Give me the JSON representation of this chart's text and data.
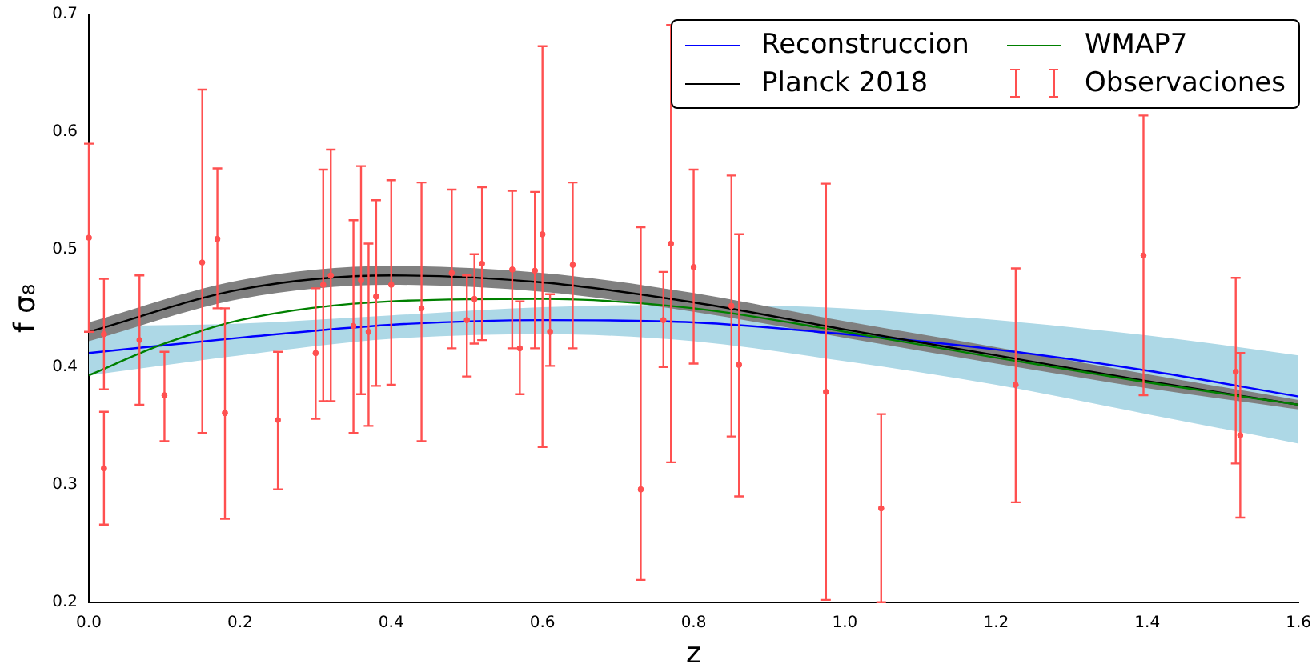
{
  "chart_data": {
    "type": "line",
    "xlabel": "z",
    "ylabel": "f σ₈",
    "xlim": [
      0,
      1.6
    ],
    "ylim": [
      0.2,
      0.7
    ],
    "xticks": [
      {
        "value": 0,
        "label": "0.0"
      },
      0.2,
      0.4,
      0.6,
      0.8,
      {
        "value": 1,
        "label": "1.0"
      },
      1.2,
      1.4,
      1.6
    ],
    "yticks": [
      0.2,
      0.3,
      0.4,
      0.5,
      0.6,
      0.7
    ],
    "grid": false,
    "legend": "top right",
    "line_style": "solid",
    "series": [
      {
        "name": "Reconstruccion",
        "type": "line",
        "color": "#0000ff",
        "x": [
          0,
          0.2,
          0.4,
          0.6,
          0.8,
          1.0,
          1.2,
          1.4,
          1.6
        ],
        "values": [
          0.412,
          0.425,
          0.436,
          0.44,
          0.438,
          0.428,
          0.415,
          0.397,
          0.375
        ],
        "lower": [
          0.393,
          0.41,
          0.424,
          0.428,
          0.422,
          0.405,
          0.385,
          0.36,
          0.335
        ],
        "upper": [
          0.435,
          0.437,
          0.444,
          0.451,
          0.453,
          0.45,
          0.44,
          0.427,
          0.41
        ]
      },
      {
        "name": "Planck 2018",
        "type": "line",
        "color": "#000000",
        "x": [
          0,
          0.2,
          0.4,
          0.6,
          0.8,
          1.0,
          1.2,
          1.4,
          1.6
        ],
        "values": [
          0.43,
          0.466,
          0.478,
          0.472,
          0.455,
          0.432,
          0.41,
          0.388,
          0.368
        ],
        "lower": [
          0.422,
          0.458,
          0.47,
          0.464,
          0.447,
          0.425,
          0.403,
          0.382,
          0.364
        ],
        "upper": [
          0.438,
          0.474,
          0.486,
          0.48,
          0.463,
          0.439,
          0.417,
          0.394,
          0.372
        ]
      },
      {
        "name": "WMAP7",
        "type": "line",
        "color": "#008000",
        "x": [
          0,
          0.1,
          0.2,
          0.4,
          0.6,
          0.8,
          1.0,
          1.2,
          1.4,
          1.6
        ],
        "values": [
          0.393,
          0.42,
          0.44,
          0.456,
          0.458,
          0.45,
          0.43,
          0.408,
          0.387,
          0.368
        ]
      },
      {
        "name": "Observaciones",
        "type": "scatter",
        "color": "#ff5050",
        "x": [
          0.0,
          0.02,
          0.02,
          0.067,
          0.1,
          0.15,
          0.17,
          0.18,
          0.25,
          0.3,
          0.31,
          0.32,
          0.35,
          0.36,
          0.37,
          0.38,
          0.4,
          0.44,
          0.48,
          0.5,
          0.51,
          0.52,
          0.56,
          0.57,
          0.59,
          0.6,
          0.61,
          0.64,
          0.73,
          0.76,
          0.77,
          0.8,
          0.85,
          0.86,
          0.975,
          1.048,
          1.226,
          1.395,
          1.517,
          1.523
        ],
        "values": [
          0.51,
          0.314,
          0.428,
          0.423,
          0.376,
          0.489,
          0.509,
          0.361,
          0.355,
          0.412,
          0.47,
          0.478,
          0.435,
          0.474,
          0.43,
          0.46,
          0.47,
          0.45,
          0.48,
          0.44,
          0.458,
          0.488,
          0.483,
          0.416,
          0.482,
          0.513,
          0.43,
          0.487,
          0.296,
          0.44,
          0.505,
          0.485,
          0.452,
          0.402,
          0.379,
          0.28,
          0.385,
          0.495,
          0.396,
          0.342
        ],
        "errors": [
          [
            0.43,
            0.59
          ],
          [
            0.266,
            0.362
          ],
          [
            0.381,
            0.475
          ],
          [
            0.368,
            0.478
          ],
          [
            0.337,
            0.413
          ],
          [
            0.344,
            0.636
          ],
          [
            0.45,
            0.569
          ],
          [
            0.271,
            0.45
          ],
          [
            0.296,
            0.413
          ],
          [
            0.356,
            0.467
          ],
          [
            0.371,
            0.568
          ],
          [
            0.371,
            0.585
          ],
          [
            0.344,
            0.525
          ],
          [
            0.377,
            0.571
          ],
          [
            0.35,
            0.505
          ],
          [
            0.384,
            0.542
          ],
          [
            0.385,
            0.559
          ],
          [
            0.337,
            0.557
          ],
          [
            0.416,
            0.551
          ],
          [
            0.392,
            0.478
          ],
          [
            0.42,
            0.496
          ],
          [
            0.423,
            0.553
          ],
          [
            0.416,
            0.55
          ],
          [
            0.377,
            0.456
          ],
          [
            0.416,
            0.549
          ],
          [
            0.332,
            0.673
          ],
          [
            0.401,
            0.462
          ],
          [
            0.416,
            0.557
          ],
          [
            0.219,
            0.519
          ],
          [
            0.4,
            0.481
          ],
          [
            0.319,
            0.691
          ],
          [
            0.403,
            0.568
          ],
          [
            0.341,
            0.563
          ],
          [
            0.29,
            0.513
          ],
          [
            0.202,
            0.556
          ],
          [
            0.2,
            0.36
          ],
          [
            0.285,
            0.484
          ],
          [
            0.376,
            0.614
          ],
          [
            0.318,
            0.476
          ],
          [
            0.272,
            0.412
          ]
        ]
      }
    ]
  }
}
